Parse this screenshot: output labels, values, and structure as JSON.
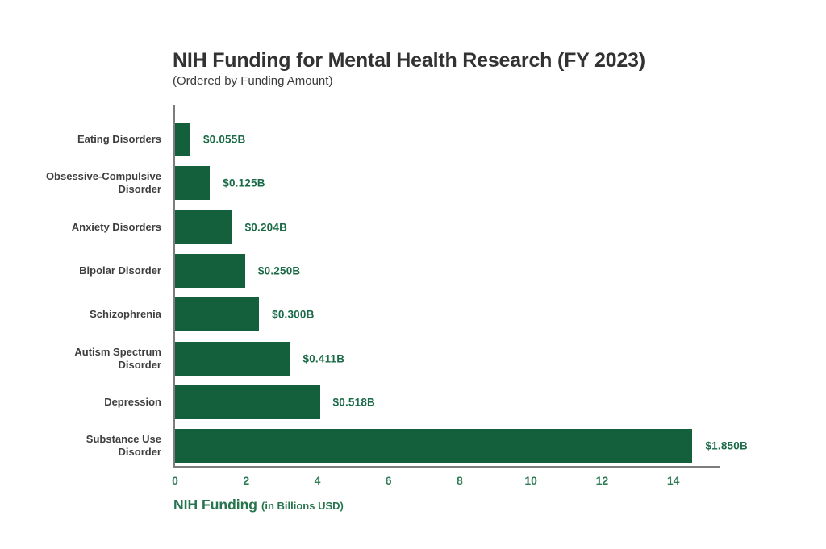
{
  "chart_data": {
    "type": "bar",
    "orientation": "horizontal",
    "title": "NIH Funding for Mental Health Research (FY 2023)",
    "subtitle": "(Ordered by Funding Amount)",
    "categories": [
      "Eating Disorders",
      "Obsessive-Compulsive Disorder",
      "Anxiety Disorders",
      "Bipolar Disorder",
      "Schizophrenia",
      "Autism Spectrum Disorder",
      "Depression",
      "Substance Use Disorder"
    ],
    "category_lines": [
      [
        "Eating Disorders"
      ],
      [
        "Obsessive-Compulsive",
        "Disorder"
      ],
      [
        "Anxiety Disorders"
      ],
      [
        "Bipolar Disorder"
      ],
      [
        "Schizophrenia"
      ],
      [
        "Autism Spectrum",
        "Disorder"
      ],
      [
        "Depression"
      ],
      [
        "Substance Use",
        "Disorder"
      ]
    ],
    "values_billions": [
      0.055,
      0.125,
      0.204,
      0.25,
      0.3,
      0.411,
      0.518,
      1.85
    ],
    "value_labels": [
      "$0.055B",
      "$0.125B",
      "$0.204B",
      "$0.250B",
      "$0.300B",
      "$0.411B",
      "$0.518B",
      "$1.850B"
    ],
    "bar_extents_axis_units": [
      0.43,
      0.98,
      1.6,
      1.97,
      2.36,
      3.23,
      4.07,
      14.54
    ],
    "x_ticks": [
      "0",
      "2",
      "4",
      "6",
      "8",
      "10",
      "12",
      "14"
    ],
    "xlim": [
      0,
      15.3
    ],
    "xlabel": "NIH Funding",
    "xlabel_unit": "(in Billions USD)",
    "legend": "none",
    "grid": "off",
    "colors": {
      "bar": "#15603C",
      "value_label": "#1B6B49",
      "tick": "#2F7C56",
      "axis_label": "#27744F",
      "title": "#323232",
      "subtitle": "#3C3C3C",
      "category_label": "#3F3F3F",
      "axis_line": "#7D7D7D",
      "background": "#FFFFFF"
    }
  }
}
